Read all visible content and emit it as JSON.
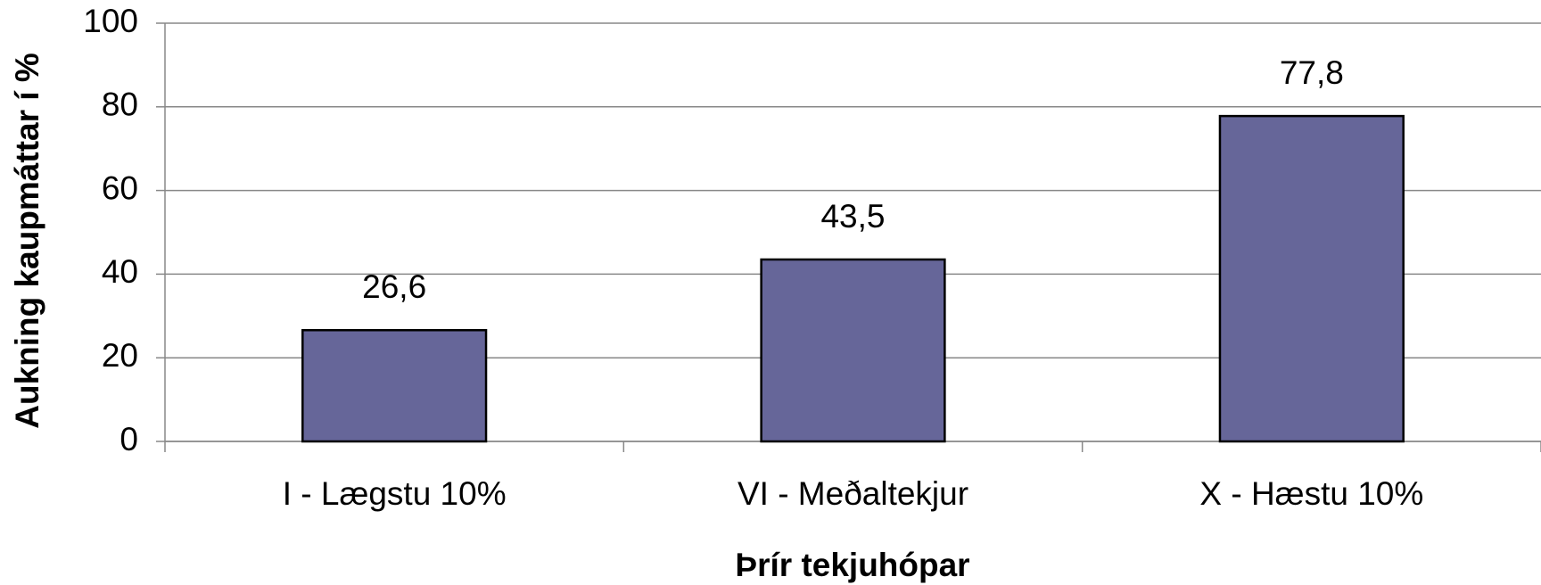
{
  "chart_data": {
    "type": "bar",
    "ylabel": "Aukning kaupmáttar í %",
    "xlabel": "Þrír tekjuhópar",
    "categories": [
      "I - Lægstu 10%",
      "VI - Meðaltekjur",
      "X - Hæstu 10%"
    ],
    "values": [
      26.6,
      43.5,
      77.8
    ],
    "value_labels": [
      "26,6",
      "43,5",
      "77,8"
    ],
    "color": "#666699",
    "ylim": [
      0,
      100
    ],
    "yticks": [
      0,
      20,
      40,
      60,
      80,
      100
    ],
    "grid": true
  }
}
